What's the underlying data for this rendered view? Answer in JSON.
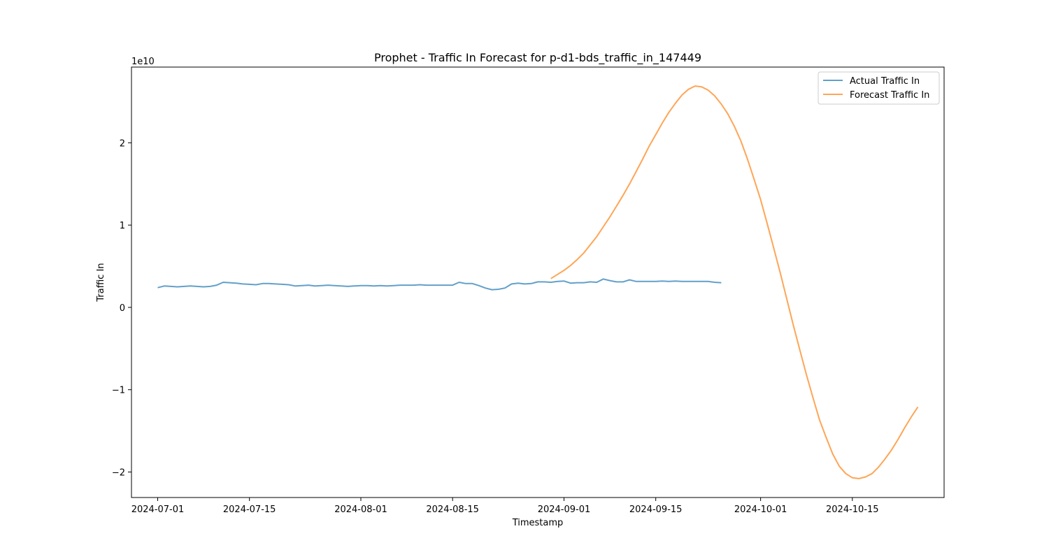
{
  "chart_data": {
    "type": "line",
    "title": "Prophet - Traffic In Forecast for p-d1-bds_traffic_in_147449",
    "xlabel": "Timestamp",
    "ylabel": "Traffic In",
    "y_scale_label": "1e10",
    "xlim": [
      "2024-06-27",
      "2024-10-29"
    ],
    "ylim": [
      -2.31,
      2.92
    ],
    "y_ticks": [
      -2,
      -1,
      0,
      1,
      2
    ],
    "y_tick_labels": [
      "−2",
      "−1",
      "0",
      "1",
      "2"
    ],
    "x_ticks": [
      "2024-07-01",
      "2024-07-15",
      "2024-08-01",
      "2024-08-15",
      "2024-09-01",
      "2024-09-15",
      "2024-10-01",
      "2024-10-15"
    ],
    "grid": false,
    "legend": "top-right",
    "series": [
      {
        "name": "Actual Traffic In",
        "color": "#1f77b4",
        "x": [
          "2024-07-01",
          "2024-07-02",
          "2024-07-03",
          "2024-07-04",
          "2024-07-05",
          "2024-07-06",
          "2024-07-07",
          "2024-07-08",
          "2024-07-09",
          "2024-07-10",
          "2024-07-11",
          "2024-07-12",
          "2024-07-13",
          "2024-07-14",
          "2024-07-15",
          "2024-07-16",
          "2024-07-17",
          "2024-07-18",
          "2024-07-19",
          "2024-07-20",
          "2024-07-21",
          "2024-07-22",
          "2024-07-23",
          "2024-07-24",
          "2024-07-25",
          "2024-07-26",
          "2024-07-27",
          "2024-07-28",
          "2024-07-29",
          "2024-07-30",
          "2024-07-31",
          "2024-08-01",
          "2024-08-02",
          "2024-08-03",
          "2024-08-04",
          "2024-08-05",
          "2024-08-06",
          "2024-08-07",
          "2024-08-08",
          "2024-08-09",
          "2024-08-10",
          "2024-08-11",
          "2024-08-12",
          "2024-08-13",
          "2024-08-14",
          "2024-08-15",
          "2024-08-16",
          "2024-08-17",
          "2024-08-18",
          "2024-08-19",
          "2024-08-20",
          "2024-08-21",
          "2024-08-22",
          "2024-08-23",
          "2024-08-24",
          "2024-08-25",
          "2024-08-26",
          "2024-08-27",
          "2024-08-28",
          "2024-08-29",
          "2024-08-30",
          "2024-08-31",
          "2024-09-01",
          "2024-09-02",
          "2024-09-03",
          "2024-09-04",
          "2024-09-05",
          "2024-09-06",
          "2024-09-07",
          "2024-09-08",
          "2024-09-09",
          "2024-09-10",
          "2024-09-11",
          "2024-09-12",
          "2024-09-13",
          "2024-09-14",
          "2024-09-15",
          "2024-09-16",
          "2024-09-17",
          "2024-09-18",
          "2024-09-19",
          "2024-09-20",
          "2024-09-21",
          "2024-09-22",
          "2024-09-23",
          "2024-09-24",
          "2024-09-25"
        ],
        "values": [
          0.24,
          0.26,
          0.255,
          0.25,
          0.255,
          0.26,
          0.255,
          0.25,
          0.255,
          0.27,
          0.305,
          0.3,
          0.295,
          0.285,
          0.28,
          0.275,
          0.29,
          0.29,
          0.285,
          0.28,
          0.275,
          0.26,
          0.265,
          0.27,
          0.26,
          0.265,
          0.27,
          0.265,
          0.26,
          0.255,
          0.26,
          0.265,
          0.265,
          0.26,
          0.265,
          0.26,
          0.265,
          0.27,
          0.27,
          0.27,
          0.275,
          0.27,
          0.27,
          0.27,
          0.27,
          0.27,
          0.305,
          0.29,
          0.29,
          0.265,
          0.235,
          0.215,
          0.22,
          0.235,
          0.285,
          0.295,
          0.285,
          0.29,
          0.31,
          0.31,
          0.305,
          0.315,
          0.32,
          0.295,
          0.3,
          0.3,
          0.31,
          0.305,
          0.345,
          0.325,
          0.31,
          0.31,
          0.335,
          0.315,
          0.315,
          0.315,
          0.315,
          0.32,
          0.315,
          0.32,
          0.315,
          0.315,
          0.315,
          0.315,
          0.315,
          0.305,
          0.3
        ]
      },
      {
        "name": "Forecast Traffic In",
        "color": "#ff7f0e",
        "x": [
          "2024-08-30",
          "2024-08-31",
          "2024-09-01",
          "2024-09-02",
          "2024-09-03",
          "2024-09-04",
          "2024-09-05",
          "2024-09-06",
          "2024-09-07",
          "2024-09-08",
          "2024-09-09",
          "2024-09-10",
          "2024-09-11",
          "2024-09-12",
          "2024-09-13",
          "2024-09-14",
          "2024-09-15",
          "2024-09-16",
          "2024-09-17",
          "2024-09-18",
          "2024-09-19",
          "2024-09-20",
          "2024-09-21",
          "2024-09-22",
          "2024-09-23",
          "2024-09-24",
          "2024-09-25",
          "2024-09-26",
          "2024-09-27",
          "2024-09-28",
          "2024-09-29",
          "2024-09-30",
          "2024-10-01",
          "2024-10-02",
          "2024-10-03",
          "2024-10-04",
          "2024-10-05",
          "2024-10-06",
          "2024-10-07",
          "2024-10-08",
          "2024-10-09",
          "2024-10-10",
          "2024-10-11",
          "2024-10-12",
          "2024-10-13",
          "2024-10-14",
          "2024-10-15",
          "2024-10-16",
          "2024-10-17",
          "2024-10-18",
          "2024-10-19",
          "2024-10-20",
          "2024-10-21",
          "2024-10-22",
          "2024-10-23",
          "2024-10-24",
          "2024-10-25"
        ],
        "values": [
          0.35,
          0.4,
          0.45,
          0.51,
          0.58,
          0.66,
          0.76,
          0.86,
          0.98,
          1.1,
          1.23,
          1.36,
          1.5,
          1.65,
          1.8,
          1.96,
          2.1,
          2.24,
          2.37,
          2.48,
          2.58,
          2.65,
          2.69,
          2.68,
          2.64,
          2.57,
          2.47,
          2.35,
          2.2,
          2.02,
          1.8,
          1.56,
          1.31,
          1.02,
          0.72,
          0.42,
          0.1,
          -0.22,
          -0.52,
          -0.82,
          -1.1,
          -1.37,
          -1.58,
          -1.78,
          -1.93,
          -2.02,
          -2.07,
          -2.08,
          -2.06,
          -2.02,
          -1.94,
          -1.84,
          -1.73,
          -1.6,
          -1.46,
          -1.33,
          -1.21
        ]
      }
    ]
  }
}
